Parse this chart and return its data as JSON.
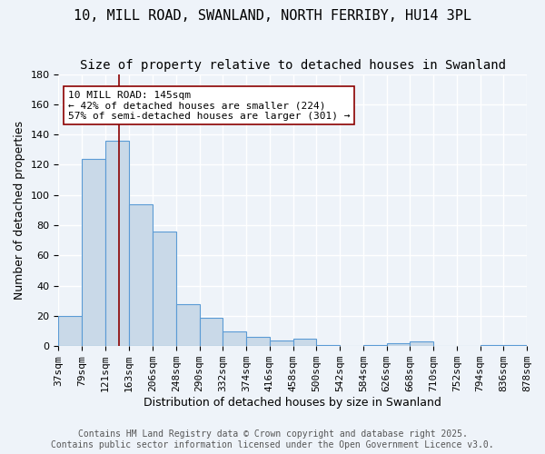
{
  "title": "10, MILL ROAD, SWANLAND, NORTH FERRIBY, HU14 3PL",
  "subtitle": "Size of property relative to detached houses in Swanland",
  "xlabel": "Distribution of detached houses by size in Swanland",
  "ylabel": "Number of detached properties",
  "heights": [
    20,
    124,
    136,
    94,
    76,
    28,
    19,
    10,
    6,
    4,
    5,
    1,
    0,
    1,
    2,
    3,
    0,
    0,
    1,
    1
  ],
  "bin_edges": [
    37,
    79,
    121,
    163,
    206,
    248,
    290,
    332,
    374,
    416,
    458,
    500,
    542,
    584,
    626,
    668,
    710,
    752,
    794,
    836,
    878
  ],
  "bar_color": "#c9d9e8",
  "bar_edge_color": "#5b9bd5",
  "vline_x": 145,
  "vline_color": "#8b0000",
  "annotation_text": "10 MILL ROAD: 145sqm\n← 42% of detached houses are smaller (224)\n57% of semi-detached houses are larger (301) →",
  "annotation_box_color": "white",
  "annotation_box_edge_color": "#8b0000",
  "bg_color": "#eef3f9",
  "grid_color": "white",
  "ylim": [
    0,
    180
  ],
  "yticks": [
    0,
    20,
    40,
    60,
    80,
    100,
    120,
    140,
    160,
    180
  ],
  "footer_text": "Contains HM Land Registry data © Crown copyright and database right 2025.\nContains public sector information licensed under the Open Government Licence v3.0.",
  "title_fontsize": 11,
  "subtitle_fontsize": 10,
  "xlabel_fontsize": 9,
  "ylabel_fontsize": 9,
  "tick_fontsize": 8,
  "annotation_fontsize": 8,
  "footer_fontsize": 7
}
